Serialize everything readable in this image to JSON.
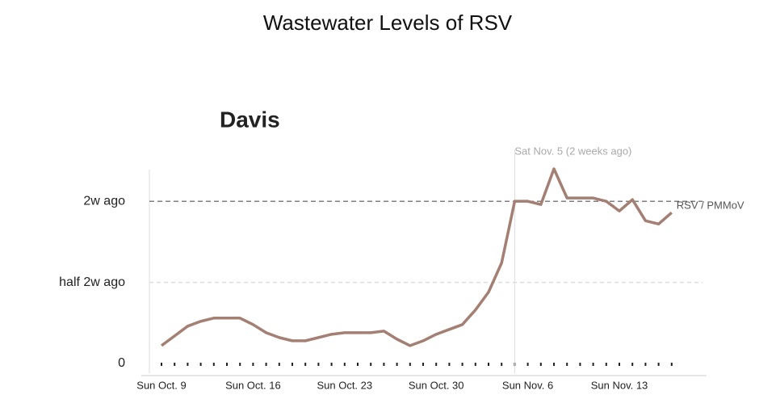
{
  "title": "Wastewater Levels of RSV",
  "chart_data": {
    "type": "line",
    "title": "Davis",
    "categories": [
      "Sun Oct. 9",
      null,
      null,
      null,
      null,
      null,
      null,
      "Sun Oct. 16",
      null,
      null,
      null,
      null,
      null,
      null,
      "Sun Oct. 23",
      null,
      null,
      null,
      null,
      null,
      null,
      "Sun Oct. 30",
      null,
      null,
      null,
      null,
      null,
      null,
      "Sun Nov. 6",
      null,
      null,
      null,
      null,
      null,
      null,
      "Sun Nov. 13",
      null,
      null,
      null,
      null
    ],
    "series": [
      {
        "name": "RSV / PMMoV",
        "color": "#a47f73",
        "values": [
          0.11,
          0.17,
          0.23,
          0.26,
          0.28,
          0.28,
          0.28,
          0.24,
          0.19,
          0.16,
          0.14,
          0.14,
          0.16,
          0.18,
          0.19,
          0.19,
          0.19,
          0.2,
          0.15,
          0.11,
          0.14,
          0.18,
          0.21,
          0.24,
          0.33,
          0.44,
          0.62,
          1.0,
          1.0,
          0.98,
          1.2,
          1.02,
          1.02,
          1.02,
          1.0,
          0.94,
          1.01,
          0.88,
          0.86,
          0.93
        ]
      }
    ],
    "ylim": [
      0,
      1.2
    ],
    "yticks": [
      0,
      {
        "value": 0.5,
        "label": "half 2w ago"
      },
      {
        "value": 1,
        "label": "2w ago"
      }
    ],
    "grid": true,
    "annotation": {
      "label": "Sat Nov. 5 (2 weeks ago)",
      "category_index": 27
    }
  }
}
